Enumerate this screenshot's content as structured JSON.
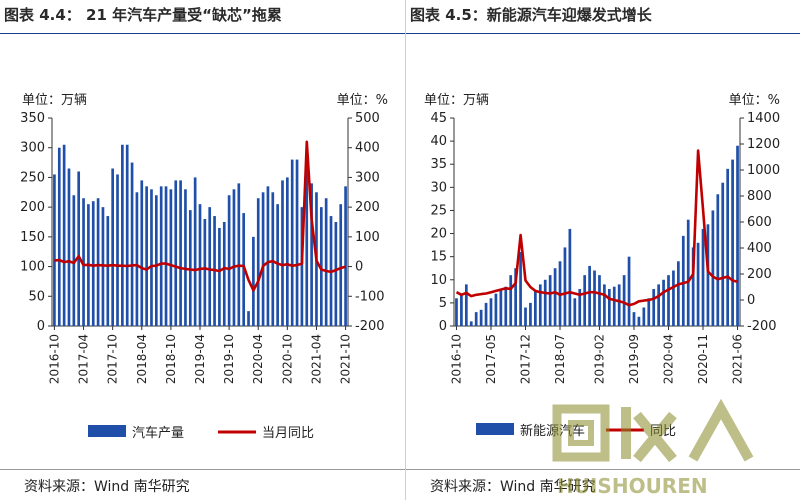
{
  "chart_data": [
    {
      "type": "bar",
      "title": "图表 4.4：  21 年汽车产量受“缺芯”拖累",
      "y_unit_left": "单位：万辆",
      "y_unit_right": "单位：%",
      "ylim": [
        0,
        350
      ],
      "yticks": [
        0,
        50,
        100,
        150,
        200,
        250,
        300,
        350
      ],
      "y2lim": [
        -200,
        500
      ],
      "y2ticks": [
        -200,
        -100,
        0,
        100,
        200,
        300,
        400,
        500
      ],
      "x_tick_labels": [
        "2016-10",
        "2017-04",
        "2017-10",
        "2018-04",
        "2018-10",
        "2019-04",
        "2019-10",
        "2020-04",
        "2020-10",
        "2021-04",
        "2021-10"
      ],
      "series": [
        {
          "name": "汽车产量",
          "kind": "bar",
          "axis": "left",
          "values": [
            255,
            300,
            305,
            265,
            220,
            260,
            215,
            205,
            210,
            215,
            200,
            185,
            265,
            255,
            305,
            305,
            275,
            225,
            245,
            235,
            230,
            220,
            235,
            235,
            230,
            245,
            245,
            230,
            195,
            250,
            205,
            180,
            200,
            185,
            165,
            175,
            220,
            230,
            240,
            190,
            25,
            150,
            215,
            225,
            235,
            225,
            205,
            245,
            250,
            280,
            280,
            200,
            275,
            240,
            225,
            200,
            215,
            185,
            175,
            205,
            235
          ]
        },
        {
          "name": "当月同比",
          "kind": "line",
          "axis": "right",
          "color": "#c00000",
          "values": [
            20,
            22,
            15,
            18,
            12,
            35,
            5,
            6,
            3,
            5,
            4,
            3,
            5,
            3,
            3,
            2,
            4,
            5,
            -5,
            -10,
            2,
            3,
            10,
            10,
            5,
            0,
            -5,
            -8,
            -10,
            -12,
            -8,
            -6,
            -10,
            -12,
            -15,
            -5,
            -8,
            0,
            3,
            2,
            -45,
            -80,
            -50,
            2,
            15,
            18,
            10,
            5,
            8,
            3,
            5,
            10,
            420,
            160,
            20,
            -10,
            -15,
            -18,
            -12,
            -5,
            0
          ]
        }
      ]
    },
    {
      "type": "bar",
      "title": "图表 4.5：新能源汽车迎爆发式增长",
      "y_unit_left": "单位：万辆",
      "y_unit_right": "单位：%",
      "ylim": [
        0,
        45
      ],
      "yticks": [
        0,
        5,
        10,
        15,
        20,
        25,
        30,
        35,
        40,
        45
      ],
      "y2lim": [
        -200,
        1400
      ],
      "y2ticks": [
        -200,
        0,
        200,
        400,
        600,
        800,
        1000,
        1200,
        1400
      ],
      "x_tick_labels": [
        "2016-10",
        "2017-05",
        "2017-12",
        "2018-07",
        "2019-02",
        "2019-09",
        "2020-04",
        "2020-11",
        "2021-06"
      ],
      "series": [
        {
          "name": "新能源汽车",
          "kind": "bar",
          "axis": "left",
          "values": [
            6,
            7,
            9,
            1,
            3,
            3.5,
            5,
            6,
            7,
            8,
            8.5,
            11,
            12.5,
            16,
            4,
            5,
            7.5,
            9,
            10,
            11,
            12.5,
            14,
            17,
            21,
            6,
            8,
            11,
            13,
            12,
            11,
            9,
            8,
            8.5,
            9,
            11,
            15,
            3,
            2,
            4,
            6,
            8,
            9,
            10,
            11,
            12,
            14,
            19.5,
            23,
            17,
            18,
            21,
            22,
            25,
            28.5,
            31,
            34,
            36,
            39
          ]
        },
        {
          "name": "同比",
          "kind": "line",
          "axis": "right",
          "color": "#c00000",
          "values": [
            60,
            40,
            55,
            30,
            40,
            45,
            50,
            60,
            70,
            80,
            90,
            85,
            130,
            500,
            150,
            100,
            70,
            60,
            55,
            50,
            60,
            40,
            50,
            60,
            50,
            40,
            50,
            60,
            60,
            50,
            40,
            10,
            0,
            -10,
            -20,
            -40,
            -30,
            -10,
            -5,
            0,
            10,
            30,
            60,
            80,
            100,
            120,
            130,
            140,
            200,
            1150,
            700,
            220,
            180,
            160,
            170,
            180,
            150,
            140
          ]
        }
      ]
    }
  ],
  "left_chart": {
    "legend": {
      "bar_label": "汽车产量",
      "line_label": "当月同比"
    },
    "source": "资料来源：Wind 南华研究"
  },
  "right_chart": {
    "legend": {
      "bar_label": "新能源汽车",
      "line_label": "同比"
    },
    "source": "资料来源：Wind 南华研究"
  },
  "colors": {
    "bar": "#1f4fa8",
    "line": "#c00000",
    "axis": "#333333",
    "title_rule": "#1a3a8a"
  },
  "watermark": {
    "text": "HUISHOUREN",
    "logo_icon": "recycle-logo-icon"
  }
}
